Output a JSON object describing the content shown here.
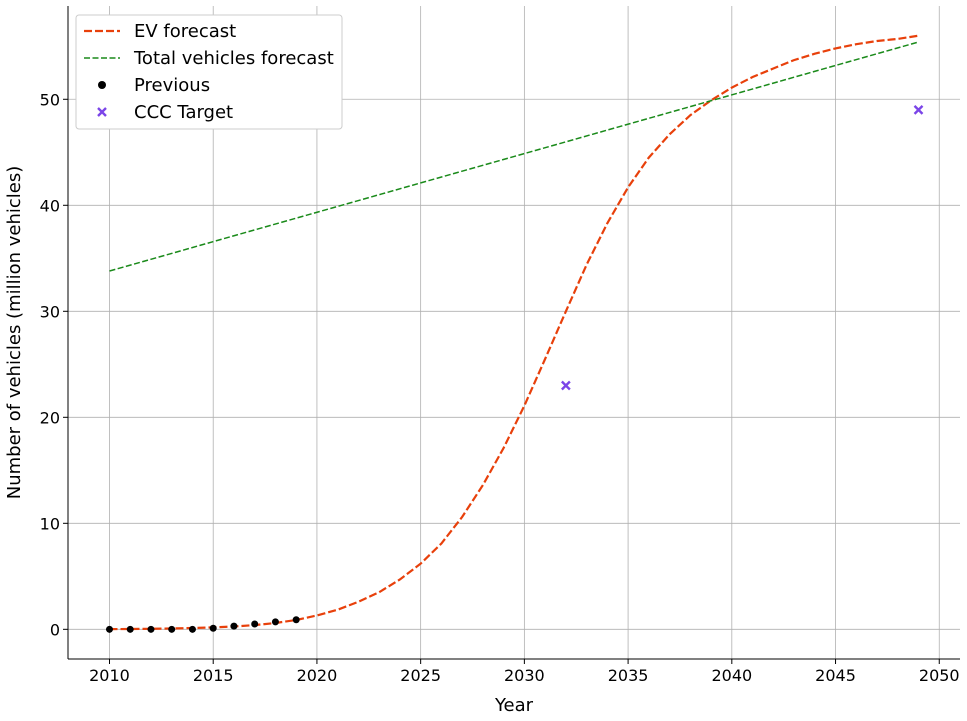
{
  "chart_data": {
    "type": "line",
    "title": "",
    "xlabel": "Year",
    "ylabel": "Number of vehicles (million vehicles)",
    "xlim": [
      2008,
      2051
    ],
    "ylim": [
      -2.8,
      58.8
    ],
    "x_ticks": [
      2010,
      2015,
      2020,
      2025,
      2030,
      2035,
      2040,
      2045,
      2050
    ],
    "y_ticks": [
      0,
      10,
      20,
      30,
      40,
      50
    ],
    "grid": true,
    "legend_position": "top-left",
    "series": [
      {
        "name": "EV forecast",
        "kind": "line",
        "style": "dashed",
        "color": "#e8400b",
        "x": [
          2010,
          2011,
          2012,
          2013,
          2014,
          2015,
          2016,
          2017,
          2018,
          2019,
          2020,
          2021,
          2022,
          2023,
          2024,
          2025,
          2026,
          2027,
          2028,
          2029,
          2030,
          2031,
          2032,
          2033,
          2034,
          2035,
          2036,
          2037,
          2038,
          2039,
          2040,
          2041,
          2042,
          2043,
          2044,
          2045,
          2046,
          2047,
          2048,
          2049
        ],
        "y": [
          0.02,
          0.03,
          0.05,
          0.08,
          0.12,
          0.18,
          0.27,
          0.4,
          0.6,
          0.88,
          1.3,
          1.85,
          2.6,
          3.5,
          4.7,
          6.2,
          8.1,
          10.6,
          13.6,
          17.1,
          21.1,
          25.5,
          30.0,
          34.4,
          38.3,
          41.7,
          44.5,
          46.7,
          48.5,
          49.9,
          51.1,
          52.1,
          52.9,
          53.7,
          54.3,
          54.8,
          55.2,
          55.5,
          55.7,
          56.0
        ]
      },
      {
        "name": "Total vehicles forecast",
        "kind": "line",
        "style": "dashed",
        "color": "#1a8a1a",
        "x": [
          2010,
          2049
        ],
        "y": [
          33.8,
          55.4
        ]
      },
      {
        "name": "Previous",
        "kind": "scatter",
        "marker": "circle",
        "color": "#000000",
        "x": [
          2010,
          2011,
          2012,
          2013,
          2014,
          2015,
          2016,
          2017,
          2018,
          2019
        ],
        "y": [
          0.0,
          0.0,
          0.0,
          0.0,
          0.0,
          0.1,
          0.3,
          0.5,
          0.7,
          0.9
        ]
      },
      {
        "name": "CCC Target",
        "kind": "scatter",
        "marker": "x",
        "color": "#7b45e8",
        "x": [
          2032,
          2049
        ],
        "y": [
          23.0,
          49.0
        ]
      }
    ]
  }
}
